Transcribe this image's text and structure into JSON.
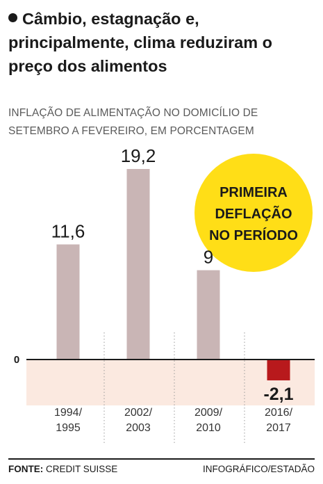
{
  "title": "Câmbio, estagnação e, principalmente, clima reduziram o preço dos alimentos",
  "subtitle_line1": "INFLAÇÃO DE ALIMENTAÇÃO NO DOMICÍLIO DE",
  "subtitle_line2": "SETEMBRO A FEVEREIRO, EM PORCENTAGEM",
  "badge": {
    "line1": "PRIMEIRA",
    "line2": "DEFLAÇÃO",
    "line3": "NO PERÍODO",
    "color": "#ffde17"
  },
  "footer": {
    "source_label": "FONTE:",
    "source": "CREDIT SUISSE",
    "credit": "INFOGRÁFICO/ESTADÃO"
  },
  "colors": {
    "positive_bar": "#c9b5b5",
    "negative_bar": "#b8191c",
    "negative_band": "#fbe9e0"
  },
  "chart_data": {
    "type": "bar",
    "categories": [
      "1994/1995",
      "2002/2003",
      "2009/2010",
      "2016/2017"
    ],
    "category_lines": [
      [
        "1994/",
        "1995"
      ],
      [
        "2002/",
        "2003"
      ],
      [
        "2009/",
        "2010"
      ],
      [
        "2016/",
        "2017"
      ]
    ],
    "values": [
      11.6,
      19.2,
      9,
      -2.1
    ],
    "value_labels": [
      "11,6",
      "19,2",
      "9",
      "-2,1"
    ],
    "zero_label": "0",
    "ylim": [
      -4.5,
      19.2
    ]
  }
}
